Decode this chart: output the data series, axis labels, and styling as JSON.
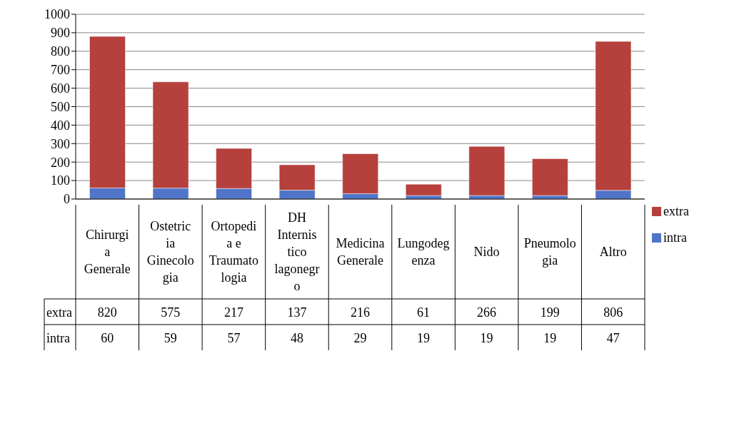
{
  "chart_data": {
    "type": "bar",
    "stacked": true,
    "categories": [
      "Chirurgia Generale",
      "Ostetricia Ginecologia",
      "Ortopedia e Traumatologia",
      "DH Internistico lagonegro",
      "Medicina Generale",
      "Lungodegenza",
      "Nido",
      "Pneumologia",
      "Altro"
    ],
    "series": [
      {
        "name": "intra",
        "color": "#4f74c8",
        "values": [
          60,
          59,
          57,
          48,
          29,
          19,
          19,
          19,
          47
        ]
      },
      {
        "name": "extra",
        "color": "#b5403c",
        "values": [
          820,
          575,
          217,
          137,
          216,
          61,
          266,
          199,
          806
        ]
      }
    ],
    "ylim": [
      0,
      1000
    ],
    "yticks": [
      0,
      100,
      200,
      300,
      400,
      500,
      600,
      700,
      800,
      900,
      1000
    ],
    "grid": "y",
    "legend": "right",
    "data_labels": true
  }
}
